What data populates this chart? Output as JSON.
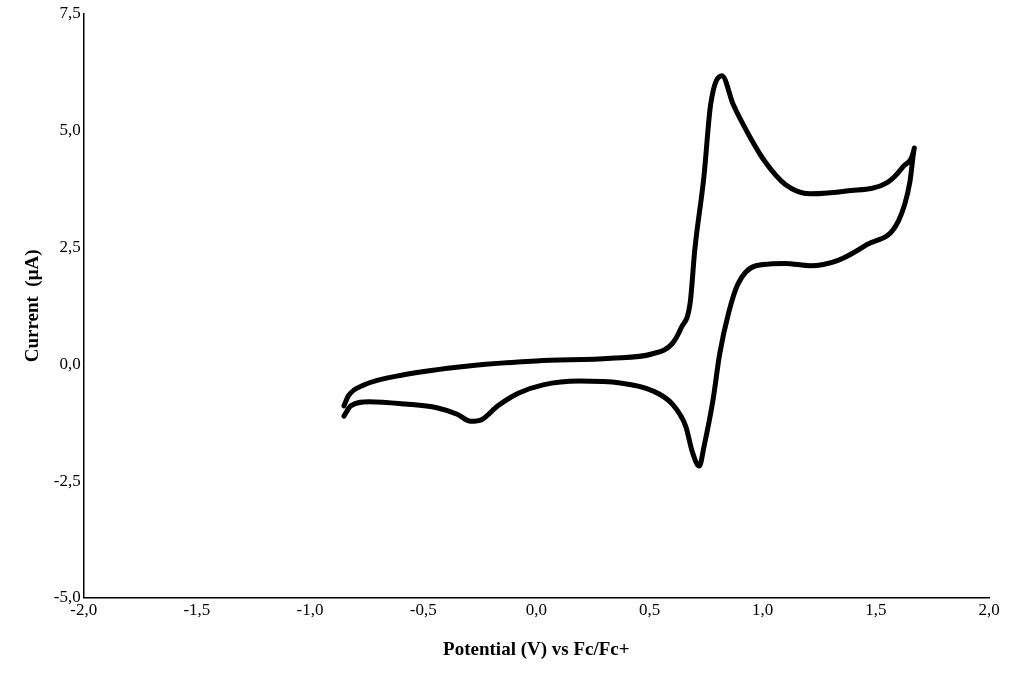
{
  "chart_data": {
    "type": "line",
    "xlabel": "Potential (V) vs Fc/Fc+",
    "ylabel": "Current  (μA)",
    "xlim": [
      -2,
      2
    ],
    "ylim": [
      -5,
      7.5
    ],
    "xticks": [
      {
        "value": -2,
        "label": "-2,0"
      },
      {
        "value": -1.5,
        "label": "-1,5"
      },
      {
        "value": -1,
        "label": "-1,0"
      },
      {
        "value": -0.5,
        "label": "-0,5"
      },
      {
        "value": 0,
        "label": "0,0"
      },
      {
        "value": 0.5,
        "label": "0,5"
      },
      {
        "value": 1,
        "label": "1,0"
      },
      {
        "value": 1.5,
        "label": "1,5"
      },
      {
        "value": 2,
        "label": "2,0"
      }
    ],
    "yticks": [
      {
        "value": -5,
        "label": "-5,0"
      },
      {
        "value": -2.5,
        "label": "-2,5"
      },
      {
        "value": 0,
        "label": "0,0"
      },
      {
        "value": 2.5,
        "label": "2,5"
      },
      {
        "value": 5,
        "label": "5,0"
      },
      {
        "value": 7.5,
        "label": "7,5"
      }
    ],
    "grid": false,
    "legend": false,
    "marker": "none",
    "line_style": "solid",
    "series": [
      {
        "color": "#000000",
        "x": [
          -0.85,
          -0.83,
          -0.76,
          -0.58,
          -0.31,
          0,
          0.33,
          0.51,
          0.6,
          0.64,
          0.68,
          0.7,
          0.74,
          0.77,
          0.82,
          0.87,
          0.94,
          1.01,
          1.1,
          1.21,
          1.37,
          1.55,
          1.62,
          1.67,
          1.65,
          1.6,
          1.46,
          1.33,
          1.21,
          1.1,
          0.97,
          0.89,
          0.85,
          0.81,
          0.78,
          0.74,
          0.72,
          0.69,
          0.66,
          0.6,
          0.51,
          0.37,
          0.19,
          0.03,
          -0.08,
          -0.17,
          -0.24,
          -0.29,
          -0.35,
          -0.44,
          -0.58,
          -0.74,
          -0.82,
          -0.85
        ],
        "values": [
          -0.89,
          -0.67,
          -0.44,
          -0.22,
          -0.04,
          0.07,
          0.13,
          0.22,
          0.44,
          0.78,
          1.33,
          2.45,
          4.0,
          5.56,
          6.18,
          5.56,
          4.9,
          4.34,
          3.85,
          3.65,
          3.71,
          3.89,
          4.23,
          4.63,
          3.89,
          3.07,
          2.56,
          2.22,
          2.11,
          2.16,
          2.11,
          1.71,
          1.11,
          0.22,
          -0.78,
          -1.78,
          -2.18,
          -1.89,
          -1.33,
          -0.85,
          -0.56,
          -0.4,
          -0.36,
          -0.44,
          -0.62,
          -0.89,
          -1.18,
          -1.22,
          -1.07,
          -0.93,
          -0.85,
          -0.8,
          -0.89,
          -1.11
        ]
      }
    ]
  }
}
